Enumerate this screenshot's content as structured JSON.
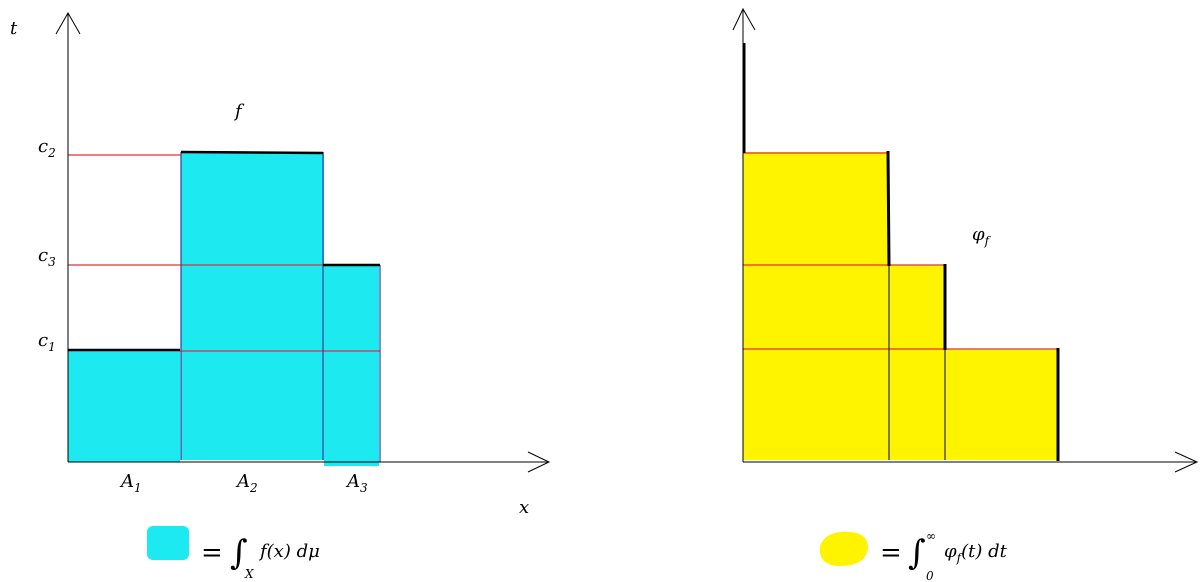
{
  "colors": {
    "cyan": "#1de9f0",
    "yellow": "#fff400",
    "red_line": "#e0303a",
    "blue_line": "#3a3aa0",
    "black": "#000000"
  },
  "left": {
    "y_axis": "t",
    "x_axis": "x",
    "function": "f",
    "levels": [
      {
        "base": "c",
        "sub": "2"
      },
      {
        "base": "c",
        "sub": "3"
      },
      {
        "base": "c",
        "sub": "1"
      }
    ],
    "sets": [
      {
        "base": "A",
        "sub": "1"
      },
      {
        "base": "A",
        "sub": "2"
      },
      {
        "base": "A",
        "sub": "3"
      }
    ],
    "legend": {
      "equals": "=",
      "integral": "∫",
      "lower": "X",
      "integrand": "f(x) dμ"
    }
  },
  "right": {
    "function": {
      "base": "φ",
      "sub": "f"
    },
    "legend": {
      "equals": "=",
      "integral": "∫",
      "lower": "0",
      "upper": "∞",
      "integrand_base": "φ",
      "integrand_sub": "f",
      "integrand_rest": "(t) dt"
    }
  }
}
